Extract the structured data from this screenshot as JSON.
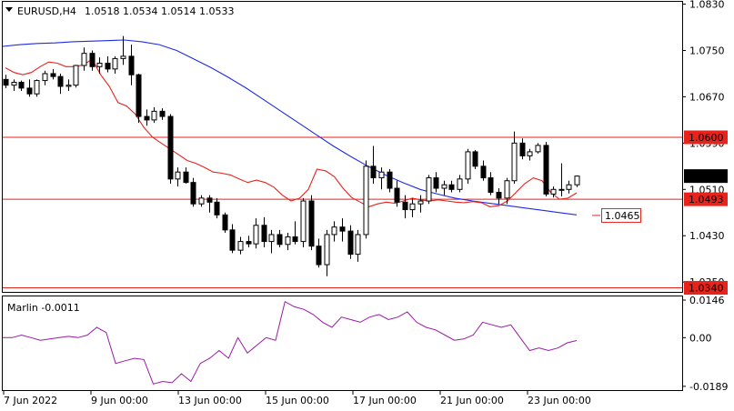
{
  "header": {
    "symbol": "EURUSD,H4",
    "ohlc": "1.0518 1.0534 1.0514 1.0533"
  },
  "indicator": {
    "label": "Marlin -0.0011",
    "axis": [
      "0.0146",
      "0.00",
      "-0.0189"
    ]
  },
  "chart_data": [
    {
      "type": "candlestick",
      "price_axis": [
        "1.0830",
        "1.0750",
        "1.0670",
        "1.0590",
        "1.0510",
        "1.0430",
        "1.0350"
      ],
      "time_axis": [
        "7 Jun 2022",
        "9 Jun 00:00",
        "13 Jun 00:00",
        "15 Jun 00:00",
        "17 Jun 00:00",
        "21 Jun 00:00",
        "23 Jun 00:00"
      ],
      "ylim": [
        1.0333,
        1.0834
      ],
      "last_price": "1.0533",
      "levels": [
        {
          "value": 1.06,
          "label": "1.0600",
          "color": "#e8231c"
        },
        {
          "value": 1.0493,
          "label": "1.0493",
          "color": "#e8231c"
        },
        {
          "value": 1.034,
          "label": "1.0340",
          "color": "#e8231c"
        }
      ],
      "target": {
        "value": 1.0465,
        "label": "1.0465",
        "color": "#e8231c"
      },
      "ma_fast": [
        1.072,
        1.0712,
        1.0708,
        1.0712,
        1.0722,
        1.073,
        1.0728,
        1.0722,
        1.0722,
        1.0725,
        1.0735,
        1.0708,
        1.0688,
        1.066,
        1.0654,
        1.064,
        1.0617,
        1.06,
        1.059,
        1.058,
        1.057,
        1.056,
        1.0555,
        1.0548,
        1.054,
        1.0538,
        1.0535,
        1.0528,
        1.0522,
        1.0526,
        1.0522,
        1.0514,
        1.05,
        1.049,
        1.0495,
        1.051,
        1.0545,
        1.0542,
        1.0532,
        1.0512,
        1.0496,
        1.0488,
        1.048,
        1.0485,
        1.0488,
        1.0486,
        1.049,
        1.0495,
        1.0492,
        1.049,
        1.0492,
        1.049,
        1.0488,
        1.0487,
        1.0489,
        1.0487,
        1.048,
        1.0482,
        1.049,
        1.0505,
        1.052,
        1.053,
        1.0525,
        1.0505,
        1.0493,
        1.0495,
        1.0504
      ],
      "ma_slow": [
        1.0757,
        1.076,
        1.0762,
        1.0763,
        1.0765,
        1.0766,
        1.0767,
        1.0768,
        1.0765,
        1.076,
        1.075,
        1.0735,
        1.072,
        1.0703,
        1.0685,
        1.0665,
        1.0645,
        1.0625,
        1.0605,
        1.0585,
        1.0567,
        1.055,
        1.0535,
        1.0522,
        1.051,
        1.0502,
        1.0495,
        1.049,
        1.0486,
        1.0482,
        1.0478,
        1.0474,
        1.047,
        1.0466
      ],
      "candles": [
        [
          1.07,
          1.0708,
          1.0685,
          1.069
        ],
        [
          1.069,
          1.07,
          1.068,
          1.0695
        ],
        [
          1.0695,
          1.0698,
          1.068,
          1.0685
        ],
        [
          1.0685,
          1.07,
          1.067,
          1.0675
        ],
        [
          1.0675,
          1.07,
          1.067,
          1.0698
        ],
        [
          1.0698,
          1.0715,
          1.069,
          1.071
        ],
        [
          1.071,
          1.0718,
          1.07,
          1.0705
        ],
        [
          1.0705,
          1.071,
          1.0675,
          1.0688
        ],
        [
          1.0688,
          1.07,
          1.068,
          1.069
        ],
        [
          1.069,
          1.0725,
          1.0686,
          1.0724
        ],
        [
          1.0724,
          1.0755,
          1.0715,
          1.0745
        ],
        [
          1.0745,
          1.075,
          1.0715,
          1.0722
        ],
        [
          1.0722,
          1.0738,
          1.071,
          1.0728
        ],
        [
          1.0728,
          1.074,
          1.0712,
          1.0718
        ],
        [
          1.0718,
          1.074,
          1.071,
          1.0736
        ],
        [
          1.0736,
          1.0775,
          1.0725,
          1.074
        ],
        [
          1.074,
          1.076,
          1.069,
          1.0708
        ],
        [
          1.0708,
          1.071,
          1.0625,
          1.0636
        ],
        [
          1.0636,
          1.0648,
          1.062,
          1.063
        ],
        [
          1.063,
          1.0652,
          1.0625,
          1.0645
        ],
        [
          1.0645,
          1.065,
          1.063,
          1.0636
        ],
        [
          1.0636,
          1.064,
          1.052,
          1.0528
        ],
        [
          1.0528,
          1.0548,
          1.0515,
          1.054
        ],
        [
          1.054,
          1.0548,
          1.052,
          1.0522
        ],
        [
          1.0522,
          1.053,
          1.048,
          1.0485
        ],
        [
          1.0485,
          1.05,
          1.048,
          1.0495
        ],
        [
          1.0495,
          1.05,
          1.047,
          1.0488
        ],
        [
          1.0488,
          1.0495,
          1.046,
          1.0466
        ],
        [
          1.0466,
          1.047,
          1.0435,
          1.044
        ],
        [
          1.044,
          1.045,
          1.04,
          1.0405
        ],
        [
          1.0405,
          1.0428,
          1.0398,
          1.042
        ],
        [
          1.042,
          1.043,
          1.041,
          1.0416
        ],
        [
          1.0416,
          1.046,
          1.0408,
          1.0448
        ],
        [
          1.0448,
          1.0462,
          1.041,
          1.042
        ],
        [
          1.042,
          1.044,
          1.04,
          1.0432
        ],
        [
          1.0432,
          1.044,
          1.041,
          1.0415
        ],
        [
          1.0415,
          1.0435,
          1.0405,
          1.0428
        ],
        [
          1.0428,
          1.0455,
          1.0415,
          1.042
        ],
        [
          1.042,
          1.0495,
          1.041,
          1.049
        ],
        [
          1.049,
          1.05,
          1.0405,
          1.0412
        ],
        [
          1.0412,
          1.0425,
          1.0375,
          1.038
        ],
        [
          1.038,
          1.044,
          1.036,
          1.0432
        ],
        [
          1.0432,
          1.0455,
          1.042,
          1.0445
        ],
        [
          1.0445,
          1.046,
          1.042,
          1.0438
        ],
        [
          1.0438,
          1.0448,
          1.039,
          1.0398
        ],
        [
          1.0398,
          1.044,
          1.0385,
          1.0432
        ],
        [
          1.0432,
          1.056,
          1.0425,
          1.055
        ],
        [
          1.055,
          1.0585,
          1.052,
          1.053
        ],
        [
          1.053,
          1.0548,
          1.051,
          1.054
        ],
        [
          1.054,
          1.0545,
          1.0505,
          1.0512
        ],
        [
          1.0512,
          1.0525,
          1.048,
          1.0488
        ],
        [
          1.0488,
          1.05,
          1.046,
          1.0475
        ],
        [
          1.0475,
          1.0495,
          1.0462,
          1.0485
        ],
        [
          1.0485,
          1.05,
          1.047,
          1.049
        ],
        [
          1.049,
          1.0535,
          1.0485,
          1.053
        ],
        [
          1.053,
          1.054,
          1.0505,
          1.0512
        ],
        [
          1.0512,
          1.0525,
          1.05,
          1.0518
        ],
        [
          1.0518,
          1.0525,
          1.0505,
          1.051
        ],
        [
          1.051,
          1.0535,
          1.0505,
          1.0528
        ],
        [
          1.0528,
          1.058,
          1.052,
          1.0575
        ],
        [
          1.0575,
          1.0578,
          1.0545,
          1.055
        ],
        [
          1.055,
          1.056,
          1.0525,
          1.053
        ],
        [
          1.053,
          1.054,
          1.05,
          1.0505
        ],
        [
          1.0505,
          1.0512,
          1.0485,
          1.0495
        ],
        [
          1.0495,
          1.053,
          1.0485,
          1.0525
        ],
        [
          1.0525,
          1.061,
          1.052,
          1.059
        ],
        [
          1.059,
          1.0598,
          1.0562,
          1.0568
        ],
        [
          1.0568,
          1.058,
          1.056,
          1.0575
        ],
        [
          1.0575,
          1.059,
          1.0572,
          1.0586
        ],
        [
          1.0586,
          1.0592,
          1.0498,
          1.0502
        ],
        [
          1.0502,
          1.0515,
          1.0496,
          1.051
        ],
        [
          1.051,
          1.0555,
          1.0498,
          1.051
        ],
        [
          1.051,
          1.0525,
          1.0503,
          1.0518
        ],
        [
          1.0518,
          1.0534,
          1.0514,
          1.0533
        ]
      ]
    },
    {
      "type": "line",
      "name": "Marlin",
      "ylim": [
        -0.0189,
        0.0146
      ],
      "values": [
        0.0,
        0.0,
        0.001,
        0.0,
        -0.001,
        -0.0005,
        0.0,
        0.0005,
        0.0,
        0.001,
        0.004,
        0.002,
        -0.01,
        -0.009,
        -0.008,
        -0.0085,
        -0.018,
        -0.017,
        -0.0175,
        -0.014,
        -0.017,
        -0.01,
        -0.008,
        -0.005,
        -0.008,
        0.0,
        -0.006,
        -0.003,
        0.0,
        -0.001,
        0.014,
        0.012,
        0.011,
        0.009,
        0.006,
        0.004,
        0.008,
        0.007,
        0.006,
        0.008,
        0.009,
        0.007,
        0.008,
        0.01,
        0.006,
        0.004,
        0.003,
        0.001,
        -0.001,
        -0.0005,
        0.001,
        0.006,
        0.005,
        0.004,
        0.005,
        0.0,
        -0.005,
        -0.004,
        -0.005,
        -0.004,
        -0.002,
        -0.0011
      ]
    }
  ]
}
